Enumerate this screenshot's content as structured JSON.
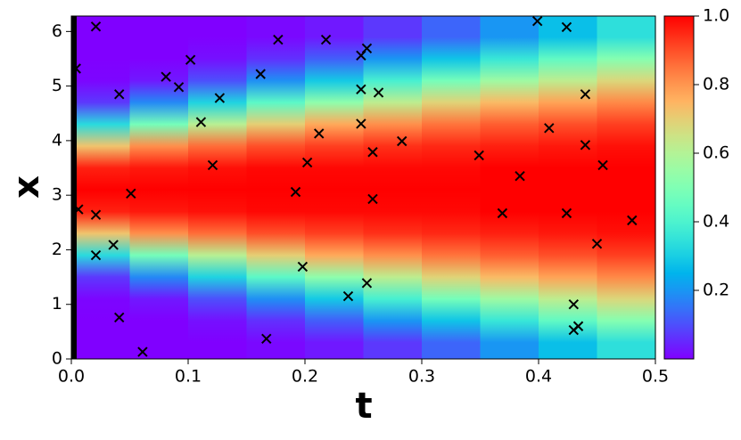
{
  "chart_data": {
    "type": "heatmap-scatter",
    "xlabel": "t",
    "ylabel": "x",
    "xlim": [
      0,
      0.5
    ],
    "ylim": [
      0,
      6.283
    ],
    "xticks": [
      {
        "value": 0,
        "label": "0.0"
      },
      0.1,
      0.2,
      0.3,
      0.4,
      0.5
    ],
    "yticks": [
      0,
      1,
      2,
      3,
      4,
      5,
      6
    ],
    "colormap": "rainbow",
    "clim": [
      0,
      1
    ],
    "colorbar_ticks": [
      0.2,
      0.4,
      0.6,
      0.8,
      {
        "value": 1,
        "label": "1.0"
      }
    ],
    "heatmap": {
      "t_bins": [
        0,
        0.05,
        0.1,
        0.15,
        0.2,
        0.25,
        0.3,
        0.35,
        0.4,
        0.45,
        0.5
      ],
      "x": [
        0.3,
        0.7,
        1.1,
        1.5,
        1.9,
        2.3,
        2.7,
        3.1,
        3.5,
        3.9,
        4.3,
        4.7,
        5.1,
        5.5,
        5.9
      ],
      "values": [
        [
          0,
          0,
          0.006,
          0.07,
          0.33,
          0.72,
          0.96,
          1,
          0.96,
          0.72,
          0.33,
          0.07,
          0.006,
          0,
          0
        ],
        [
          0,
          0,
          0.03,
          0.18,
          0.48,
          0.81,
          0.97,
          1,
          0.97,
          0.81,
          0.48,
          0.18,
          0.03,
          0,
          0
        ],
        [
          0,
          0.02,
          0.1,
          0.31,
          0.61,
          0.86,
          0.98,
          1,
          0.98,
          0.86,
          0.61,
          0.31,
          0.1,
          0.02,
          0
        ],
        [
          0.01,
          0.06,
          0.19,
          0.43,
          0.7,
          0.9,
          0.99,
          1,
          0.99,
          0.9,
          0.7,
          0.43,
          0.19,
          0.06,
          0.01
        ],
        [
          0.03,
          0.12,
          0.29,
          0.53,
          0.77,
          0.92,
          0.99,
          1,
          0.99,
          0.92,
          0.77,
          0.53,
          0.29,
          0.12,
          0.03
        ],
        [
          0.07,
          0.2,
          0.39,
          0.62,
          0.81,
          0.94,
          0.99,
          1,
          0.99,
          0.94,
          0.81,
          0.62,
          0.39,
          0.2,
          0.07
        ],
        [
          0.13,
          0.28,
          0.48,
          0.69,
          0.85,
          0.95,
          0.99,
          1,
          0.99,
          0.95,
          0.85,
          0.69,
          0.48,
          0.28,
          0.13
        ],
        [
          0.2,
          0.36,
          0.56,
          0.74,
          0.88,
          0.96,
          1,
          1,
          1,
          0.96,
          0.88,
          0.74,
          0.56,
          0.36,
          0.2
        ],
        [
          0.27,
          0.44,
          0.62,
          0.78,
          0.9,
          0.97,
          1,
          1,
          1,
          0.97,
          0.9,
          0.78,
          0.62,
          0.44,
          0.27
        ],
        [
          0.34,
          0.51,
          0.68,
          0.82,
          0.92,
          0.98,
          1,
          1,
          1,
          0.98,
          0.92,
          0.82,
          0.68,
          0.51,
          0.34
        ]
      ]
    },
    "points": {
      "marker_color": "#000000",
      "x": [
        0.004,
        0.021,
        0.006,
        0.021,
        0.021,
        0.036,
        0.041,
        0.041,
        0.051,
        0.061,
        0.081,
        0.092,
        0.102,
        0.111,
        0.121,
        0.127,
        0.162,
        0.167,
        0.177,
        0.192,
        0.198,
        0.202,
        0.212,
        0.218,
        0.237,
        0.248,
        0.253,
        0.248,
        0.248,
        0.263,
        0.253,
        0.258,
        0.258,
        0.283,
        0.349,
        0.369,
        0.384,
        0.399,
        0.409,
        0.424,
        0.424,
        0.43,
        0.43,
        0.434,
        0.44,
        0.44,
        0.45,
        0.455,
        0.48
      ],
      "values": [
        5.32,
        6.09,
        2.74,
        2.64,
        1.9,
        2.09,
        4.85,
        0.76,
        3.03,
        0.13,
        5.17,
        4.98,
        5.48,
        4.34,
        3.55,
        4.78,
        5.22,
        0.37,
        5.85,
        3.06,
        1.69,
        3.6,
        4.13,
        5.85,
        1.15,
        5.56,
        5.69,
        4.94,
        4.31,
        4.88,
        1.39,
        3.79,
        2.93,
        3.99,
        3.73,
        2.67,
        3.35,
        6.19,
        4.23,
        6.08,
        2.67,
        1.0,
        0.53,
        0.6,
        4.85,
        3.92,
        2.11,
        3.55,
        2.54
      ]
    }
  }
}
